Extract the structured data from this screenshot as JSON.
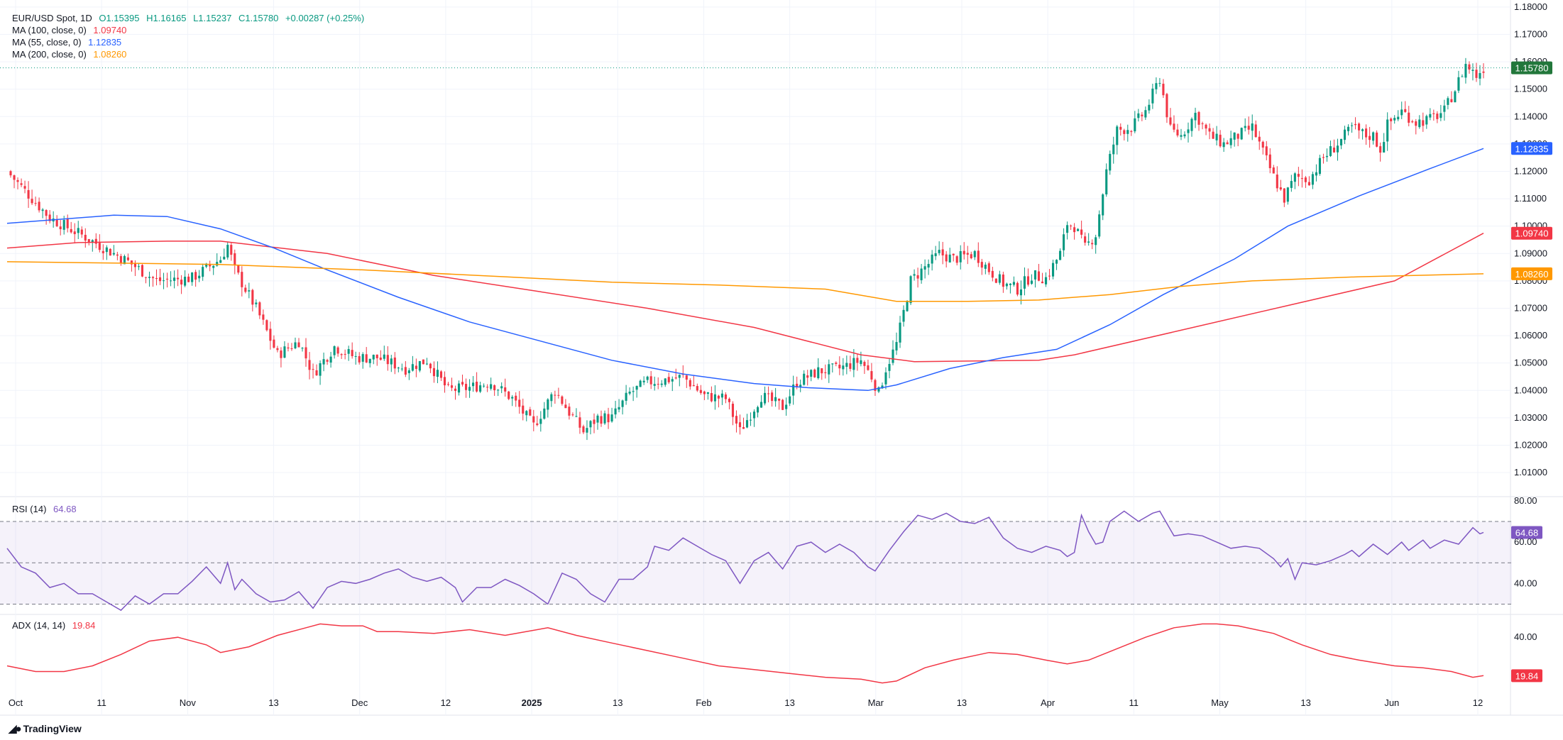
{
  "header": {
    "symbol": "EUR/USD Spot, 1D",
    "open": "O1.15395",
    "high": "H1.16165",
    "low": "L1.15237",
    "close": "C1.15780",
    "change": "+0.00287 (+0.25%)"
  },
  "indicators": {
    "ma100_label": "MA (100, close, 0)",
    "ma100_value": "1.09740",
    "ma55_label": "MA (55, close, 0)",
    "ma55_value": "1.12835",
    "ma200_label": "MA (200, close, 0)",
    "ma200_value": "1.08260",
    "rsi_label": "RSI (14)",
    "rsi_value": "64.68",
    "adx_label": "ADX (14, 14)",
    "adx_value": "19.84"
  },
  "colors": {
    "up": "#089981",
    "down": "#f23645",
    "ma100": "#f23645",
    "ma55": "#2962ff",
    "ma200": "#ff9800",
    "rsi": "#7e57c2",
    "adx": "#f23645",
    "price_tag": "#22773b"
  },
  "brand": {
    "name": "TradingView",
    "logo_icon": "tradingview-logo-icon"
  },
  "chart_data": {
    "type": "candlestick",
    "title": "EUR/USD Spot, 1D",
    "price_axis": {
      "ticks": [
        "1.18000",
        "1.17000",
        "1.16000",
        "1.15000",
        "1.14000",
        "1.13000",
        "1.12000",
        "1.11000",
        "1.10000",
        "1.09000",
        "1.08000",
        "1.07000",
        "1.06000",
        "1.05000",
        "1.04000",
        "1.03000",
        "1.02000",
        "1.01000"
      ],
      "range": [
        1.0025,
        1.1805
      ]
    },
    "time_axis": {
      "labels": [
        "Oct",
        "11",
        "Nov",
        "13",
        "Dec",
        "12",
        "2025",
        "13",
        "Feb",
        "13",
        "Mar",
        "13",
        "Apr",
        "11",
        "May",
        "13",
        "Jun",
        "12"
      ],
      "bold": [
        "2025"
      ]
    },
    "last_price": "1.15780",
    "price_tags": [
      {
        "label": "1.15780",
        "value": 1.1578,
        "color": "#22773b"
      },
      {
        "label": "1.12835",
        "value": 1.12835,
        "color": "#2962ff"
      },
      {
        "label": "1.09740",
        "value": 1.0974,
        "color": "#f23645"
      },
      {
        "label": "1.08260",
        "value": 1.0826,
        "color": "#ff9800"
      }
    ],
    "anchors": [
      [
        0,
        1.12
      ],
      [
        12,
        1.103
      ],
      [
        22,
        1.096
      ],
      [
        34,
        1.087
      ],
      [
        42,
        1.08
      ],
      [
        52,
        1.081
      ],
      [
        60,
        1.088
      ],
      [
        62,
        1.093
      ],
      [
        64,
        1.084
      ],
      [
        70,
        1.07
      ],
      [
        76,
        1.053
      ],
      [
        82,
        1.058
      ],
      [
        86,
        1.046
      ],
      [
        92,
        1.056
      ],
      [
        98,
        1.052
      ],
      [
        104,
        1.052
      ],
      [
        112,
        1.048
      ],
      [
        118,
        1.051
      ],
      [
        124,
        1.04
      ],
      [
        130,
        1.041
      ],
      [
        136,
        1.043
      ],
      [
        142,
        1.037
      ],
      [
        148,
        1.027
      ],
      [
        154,
        1.04
      ],
      [
        158,
        1.032
      ],
      [
        162,
        1.025
      ],
      [
        166,
        1.03
      ],
      [
        170,
        1.03
      ],
      [
        175,
        1.039
      ],
      [
        180,
        1.043
      ],
      [
        186,
        1.044
      ],
      [
        190,
        1.045
      ],
      [
        196,
        1.038
      ],
      [
        202,
        1.037
      ],
      [
        206,
        1.025
      ],
      [
        212,
        1.038
      ],
      [
        218,
        1.034
      ],
      [
        222,
        1.043
      ],
      [
        228,
        1.047
      ],
      [
        234,
        1.048
      ],
      [
        240,
        1.051
      ],
      [
        243,
        1.045
      ],
      [
        245,
        1.039
      ],
      [
        247,
        1.048
      ],
      [
        250,
        1.057
      ],
      [
        254,
        1.08
      ],
      [
        258,
        1.085
      ],
      [
        262,
        1.09
      ],
      [
        266,
        1.088
      ],
      [
        272,
        1.09
      ],
      [
        276,
        1.084
      ],
      [
        280,
        1.079
      ],
      [
        284,
        1.077
      ],
      [
        288,
        1.082
      ],
      [
        292,
        1.081
      ],
      [
        296,
        1.09
      ],
      [
        298,
        1.101
      ],
      [
        300,
        1.1
      ],
      [
        303,
        1.092
      ],
      [
        306,
        1.097
      ],
      [
        309,
        1.12
      ],
      [
        312,
        1.135
      ],
      [
        316,
        1.136
      ],
      [
        320,
        1.142
      ],
      [
        324,
        1.154
      ],
      [
        327,
        1.135
      ],
      [
        330,
        1.133
      ],
      [
        334,
        1.141
      ],
      [
        338,
        1.133
      ],
      [
        342,
        1.13
      ],
      [
        346,
        1.133
      ],
      [
        350,
        1.136
      ],
      [
        353,
        1.127
      ],
      [
        356,
        1.118
      ],
      [
        359,
        1.11
      ],
      [
        362,
        1.118
      ],
      [
        366,
        1.117
      ],
      [
        370,
        1.125
      ],
      [
        374,
        1.13
      ],
      [
        378,
        1.136
      ],
      [
        382,
        1.133
      ],
      [
        384,
        1.133
      ],
      [
        386,
        1.128
      ],
      [
        388,
        1.137
      ],
      [
        392,
        1.142
      ],
      [
        396,
        1.138
      ],
      [
        400,
        1.139
      ],
      [
        404,
        1.142
      ],
      [
        407,
        1.15
      ],
      [
        410,
        1.159
      ],
      [
        413,
        1.155
      ],
      [
        415,
        1.1578
      ]
    ],
    "series": [
      {
        "name": "MA (100, close, 0)",
        "color": "#f23645",
        "points": [
          [
            0,
            1.092
          ],
          [
            20,
            1.094
          ],
          [
            45,
            1.0945
          ],
          [
            60,
            1.0945
          ],
          [
            90,
            1.09
          ],
          [
            120,
            1.082
          ],
          [
            150,
            1.076
          ],
          [
            180,
            1.07
          ],
          [
            210,
            1.063
          ],
          [
            240,
            1.053
          ],
          [
            255,
            1.0505
          ],
          [
            290,
            1.051
          ],
          [
            300,
            1.053
          ],
          [
            330,
            1.062
          ],
          [
            360,
            1.071
          ],
          [
            390,
            1.08
          ],
          [
            415,
            1.0974
          ]
        ]
      },
      {
        "name": "MA (55, close, 0)",
        "color": "#2962ff",
        "points": [
          [
            0,
            1.101
          ],
          [
            30,
            1.104
          ],
          [
            45,
            1.1035
          ],
          [
            60,
            1.099
          ],
          [
            75,
            1.092
          ],
          [
            90,
            1.084
          ],
          [
            110,
            1.074
          ],
          [
            130,
            1.065
          ],
          [
            150,
            1.058
          ],
          [
            170,
            1.051
          ],
          [
            190,
            1.046
          ],
          [
            210,
            1.0425
          ],
          [
            225,
            1.041
          ],
          [
            242,
            1.04
          ],
          [
            250,
            1.042
          ],
          [
            265,
            1.048
          ],
          [
            280,
            1.052
          ],
          [
            295,
            1.055
          ],
          [
            310,
            1.064
          ],
          [
            325,
            1.075
          ],
          [
            345,
            1.088
          ],
          [
            360,
            1.1
          ],
          [
            380,
            1.111
          ],
          [
            400,
            1.121
          ],
          [
            415,
            1.12835
          ]
        ]
      },
      {
        "name": "MA (200, close, 0)",
        "color": "#ff9800",
        "points": [
          [
            0,
            1.087
          ],
          [
            30,
            1.0865
          ],
          [
            60,
            1.086
          ],
          [
            100,
            1.084
          ],
          [
            140,
            1.0815
          ],
          [
            170,
            1.0795
          ],
          [
            200,
            1.0785
          ],
          [
            230,
            1.077
          ],
          [
            250,
            1.0725
          ],
          [
            270,
            1.0725
          ],
          [
            290,
            1.073
          ],
          [
            310,
            1.075
          ],
          [
            330,
            1.078
          ],
          [
            350,
            1.08
          ],
          [
            380,
            1.0815
          ],
          [
            415,
            1.0826
          ]
        ]
      }
    ],
    "rsi": {
      "label": "RSI (14)",
      "value": "64.68",
      "ticks": [
        "80.00",
        "60.00",
        "40.00"
      ],
      "range": [
        25,
        82
      ],
      "bands": [
        70,
        30,
        50
      ],
      "points": [
        [
          0,
          57
        ],
        [
          4,
          48
        ],
        [
          8,
          45
        ],
        [
          12,
          38
        ],
        [
          16,
          40
        ],
        [
          20,
          35
        ],
        [
          24,
          35
        ],
        [
          28,
          31
        ],
        [
          32,
          27
        ],
        [
          36,
          34
        ],
        [
          40,
          30
        ],
        [
          44,
          35
        ],
        [
          48,
          35
        ],
        [
          52,
          41
        ],
        [
          56,
          48
        ],
        [
          60,
          40
        ],
        [
          62,
          50
        ],
        [
          64,
          37
        ],
        [
          66,
          42
        ],
        [
          70,
          35
        ],
        [
          74,
          31
        ],
        [
          78,
          32
        ],
        [
          82,
          36
        ],
        [
          86,
          28
        ],
        [
          90,
          38
        ],
        [
          94,
          41
        ],
        [
          98,
          40
        ],
        [
          102,
          42
        ],
        [
          106,
          45
        ],
        [
          110,
          47
        ],
        [
          114,
          43
        ],
        [
          118,
          41
        ],
        [
          122,
          43
        ],
        [
          126,
          38
        ],
        [
          128,
          31
        ],
        [
          132,
          38
        ],
        [
          136,
          38
        ],
        [
          140,
          42
        ],
        [
          144,
          39
        ],
        [
          148,
          35
        ],
        [
          152,
          30
        ],
        [
          156,
          45
        ],
        [
          160,
          42
        ],
        [
          164,
          35
        ],
        [
          168,
          31
        ],
        [
          172,
          42
        ],
        [
          176,
          42
        ],
        [
          180,
          48
        ],
        [
          182,
          58
        ],
        [
          186,
          56
        ],
        [
          190,
          62
        ],
        [
          194,
          58
        ],
        [
          198,
          54
        ],
        [
          202,
          51
        ],
        [
          206,
          40
        ],
        [
          210,
          51
        ],
        [
          214,
          55
        ],
        [
          218,
          47
        ],
        [
          222,
          58
        ],
        [
          226,
          60
        ],
        [
          230,
          55
        ],
        [
          234,
          59
        ],
        [
          238,
          55
        ],
        [
          242,
          48
        ],
        [
          244,
          46
        ],
        [
          248,
          56
        ],
        [
          252,
          65
        ],
        [
          256,
          73
        ],
        [
          260,
          71
        ],
        [
          264,
          74
        ],
        [
          268,
          70
        ],
        [
          272,
          69
        ],
        [
          276,
          72
        ],
        [
          280,
          62
        ],
        [
          284,
          57
        ],
        [
          288,
          55
        ],
        [
          292,
          58
        ],
        [
          296,
          56
        ],
        [
          298,
          53
        ],
        [
          300,
          55
        ],
        [
          302,
          73
        ],
        [
          304,
          65
        ],
        [
          306,
          59
        ],
        [
          308,
          60
        ],
        [
          310,
          70
        ],
        [
          314,
          75
        ],
        [
          318,
          70
        ],
        [
          322,
          74
        ],
        [
          324,
          75
        ],
        [
          328,
          63
        ],
        [
          332,
          64
        ],
        [
          336,
          63
        ],
        [
          340,
          60
        ],
        [
          344,
          57
        ],
        [
          348,
          58
        ],
        [
          352,
          57
        ],
        [
          356,
          52
        ],
        [
          358,
          48
        ],
        [
          360,
          52
        ],
        [
          362,
          42
        ],
        [
          364,
          50
        ],
        [
          368,
          49
        ],
        [
          372,
          51
        ],
        [
          376,
          54
        ],
        [
          378,
          56
        ],
        [
          380,
          53
        ],
        [
          384,
          59
        ],
        [
          388,
          54
        ],
        [
          392,
          60
        ],
        [
          394,
          56
        ],
        [
          398,
          61
        ],
        [
          400,
          57
        ],
        [
          404,
          61
        ],
        [
          408,
          59
        ],
        [
          412,
          67
        ],
        [
          414,
          64
        ],
        [
          415,
          64.68
        ]
      ]
    },
    "adx": {
      "label": "ADX (14, 14)",
      "value": "19.84",
      "ticks": [
        "40.00"
      ],
      "range": [
        14,
        52
      ],
      "points": [
        [
          0,
          25
        ],
        [
          8,
          22
        ],
        [
          16,
          22
        ],
        [
          24,
          25
        ],
        [
          32,
          31
        ],
        [
          40,
          38
        ],
        [
          48,
          40
        ],
        [
          56,
          36
        ],
        [
          60,
          32
        ],
        [
          68,
          35
        ],
        [
          76,
          41
        ],
        [
          84,
          45
        ],
        [
          88,
          47
        ],
        [
          94,
          46
        ],
        [
          100,
          46
        ],
        [
          104,
          43
        ],
        [
          110,
          43
        ],
        [
          120,
          42
        ],
        [
          130,
          44
        ],
        [
          140,
          41
        ],
        [
          152,
          45
        ],
        [
          160,
          41
        ],
        [
          170,
          37
        ],
        [
          180,
          33
        ],
        [
          190,
          29
        ],
        [
          200,
          25
        ],
        [
          210,
          23
        ],
        [
          220,
          21
        ],
        [
          230,
          19
        ],
        [
          240,
          18
        ],
        [
          246,
          16
        ],
        [
          250,
          17
        ],
        [
          258,
          24
        ],
        [
          266,
          28
        ],
        [
          276,
          32
        ],
        [
          284,
          31
        ],
        [
          292,
          28
        ],
        [
          298,
          26
        ],
        [
          304,
          28
        ],
        [
          312,
          34
        ],
        [
          320,
          40
        ],
        [
          328,
          45
        ],
        [
          336,
          47
        ],
        [
          340,
          47
        ],
        [
          346,
          46
        ],
        [
          356,
          42
        ],
        [
          364,
          36
        ],
        [
          372,
          31
        ],
        [
          380,
          28
        ],
        [
          390,
          25
        ],
        [
          398,
          24
        ],
        [
          406,
          22
        ],
        [
          412,
          19
        ],
        [
          415,
          19.84
        ]
      ]
    }
  }
}
